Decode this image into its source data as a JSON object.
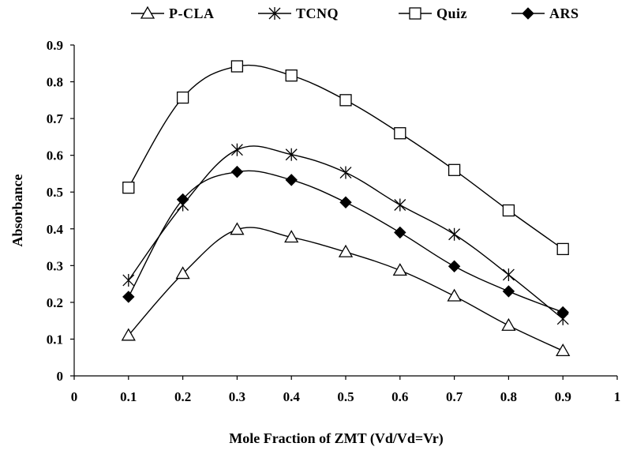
{
  "chart_data": {
    "type": "line",
    "title": "",
    "xlabel": "Mole Fraction of ZMT (Vd/Vd=Vr)",
    "ylabel": "Absorbance",
    "xlim": [
      0,
      1
    ],
    "ylim": [
      0,
      0.9
    ],
    "x_ticks": [
      "0",
      "0.1",
      "0.2",
      "0.3",
      "0.4",
      "0.5",
      "0.6",
      "0.7",
      "0.8",
      "0.9",
      "1"
    ],
    "y_ticks": [
      "0",
      "0.1",
      "0.2",
      "0.3",
      "0.4",
      "0.5",
      "0.6",
      "0.7",
      "0.8",
      "0.9"
    ],
    "grid": false,
    "legend_position": "top",
    "x": [
      0.1,
      0.2,
      0.3,
      0.4,
      0.5,
      0.6,
      0.7,
      0.8,
      0.9
    ],
    "series": [
      {
        "name": "P-CLA",
        "marker": "triangle-open",
        "values": [
          0.11,
          0.278,
          0.398,
          0.377,
          0.337,
          0.287,
          0.217,
          0.137,
          0.068
        ]
      },
      {
        "name": "TCNQ",
        "marker": "asterisk",
        "values": [
          0.26,
          0.465,
          0.615,
          0.602,
          0.553,
          0.465,
          0.385,
          0.275,
          0.155
        ]
      },
      {
        "name": "Quiz",
        "marker": "square-open",
        "values": [
          0.512,
          0.757,
          0.842,
          0.817,
          0.75,
          0.66,
          0.56,
          0.45,
          0.345
        ]
      },
      {
        "name": "ARS",
        "marker": "diamond-filled",
        "values": [
          0.215,
          0.48,
          0.555,
          0.533,
          0.472,
          0.39,
          0.298,
          0.23,
          0.173
        ]
      }
    ]
  }
}
